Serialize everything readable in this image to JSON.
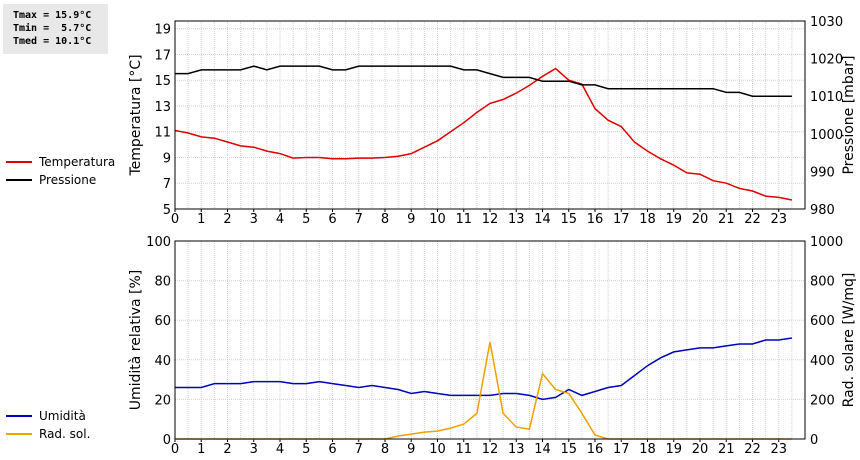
{
  "stats": {
    "tmax": "Tmax = 15.9°C",
    "tmin": "Tmin =  5.7°C",
    "tmed": "Tmed = 10.1°C"
  },
  "colors": {
    "temp": "#dd0000",
    "press": "#000000",
    "hum": "#0000bb",
    "rad": "#f0a000",
    "grid": "#d0d0d0"
  },
  "chart_data": [
    {
      "type": "line",
      "x_ticks": [
        "0",
        "1",
        "2",
        "3",
        "4",
        "5",
        "6",
        "7",
        "8",
        "9",
        "10",
        "11",
        "12",
        "13",
        "14",
        "15",
        "16",
        "17",
        "18",
        "19",
        "20",
        "21",
        "22",
        "23"
      ],
      "xlim": [
        0,
        24
      ],
      "ylabel_left": "Temperatura [°C]",
      "ylabel_right": "Pressione [mbar]",
      "ylim_left": [
        5,
        19.6
      ],
      "ylim_right": [
        980,
        1030
      ],
      "yticks_left": [
        "5",
        "7",
        "9",
        "11",
        "13",
        "15",
        "17",
        "19"
      ],
      "yticks_right": [
        "980",
        "990",
        "1000",
        "1010",
        "1020",
        "1030"
      ],
      "series": [
        {
          "name": "Temperatura",
          "axis": "left",
          "x": [
            0,
            0.5,
            1,
            1.5,
            2,
            2.5,
            3,
            3.5,
            4,
            4.5,
            5,
            5.5,
            6,
            6.5,
            7,
            7.5,
            8,
            8.5,
            9,
            9.5,
            10,
            10.5,
            11,
            11.5,
            12,
            12.5,
            13,
            13.5,
            14,
            14.5,
            15,
            15.5,
            16,
            16.5,
            17,
            17.5,
            18,
            18.5,
            19,
            19.5,
            20,
            20.5,
            21,
            21.5,
            22,
            22.5,
            23,
            23.5
          ],
          "values": [
            11.1,
            10.9,
            10.6,
            10.5,
            10.2,
            9.9,
            9.8,
            9.5,
            9.3,
            8.95,
            9.0,
            9.0,
            8.9,
            8.9,
            8.95,
            8.95,
            9.0,
            9.1,
            9.3,
            9.8,
            10.3,
            11.0,
            11.7,
            12.5,
            13.2,
            13.5,
            14.0,
            14.6,
            15.3,
            15.9,
            15.0,
            14.7,
            12.8,
            11.9,
            11.4,
            10.2,
            9.5,
            8.9,
            8.4,
            7.8,
            7.7,
            7.2,
            7.0,
            6.6,
            6.4,
            6.0,
            5.9,
            5.7
          ]
        },
        {
          "name": "Pressione",
          "axis": "right",
          "x": [
            0,
            0.5,
            1,
            1.5,
            2,
            2.5,
            3,
            3.5,
            4,
            4.5,
            5,
            5.5,
            6,
            6.5,
            7,
            7.5,
            8,
            8.5,
            9,
            9.5,
            10,
            10.5,
            11,
            11.5,
            12,
            12.5,
            13,
            13.5,
            14,
            14.5,
            15,
            15.5,
            16,
            16.5,
            17,
            17.5,
            18,
            18.5,
            19,
            19.5,
            20,
            20.5,
            21,
            21.5,
            22,
            22.5,
            23,
            23.5
          ],
          "values": [
            1016,
            1016,
            1017,
            1017,
            1017,
            1017,
            1018,
            1017,
            1018,
            1018,
            1018,
            1018,
            1017,
            1017,
            1018,
            1018,
            1018,
            1018,
            1018,
            1018,
            1018,
            1018,
            1017,
            1017,
            1016,
            1015,
            1015,
            1015,
            1014,
            1014,
            1014,
            1013,
            1013,
            1012,
            1012,
            1012,
            1012,
            1012,
            1012,
            1012,
            1012,
            1012,
            1011,
            1011,
            1010,
            1010,
            1010,
            1010
          ]
        }
      ]
    },
    {
      "type": "line",
      "x_ticks": [
        "0",
        "1",
        "2",
        "3",
        "4",
        "5",
        "6",
        "7",
        "8",
        "9",
        "10",
        "11",
        "12",
        "13",
        "14",
        "15",
        "16",
        "17",
        "18",
        "19",
        "20",
        "21",
        "22",
        "23"
      ],
      "xlim": [
        0,
        24
      ],
      "ylabel_left": "Umidità relativa [%]",
      "ylabel_right": "Rad. solare [W/mq]",
      "ylim_left": [
        0,
        100
      ],
      "ylim_right": [
        0,
        1000
      ],
      "yticks_left": [
        "0",
        "20",
        "40",
        "60",
        "80",
        "100"
      ],
      "yticks_right": [
        "0",
        "200",
        "400",
        "600",
        "800",
        "1000"
      ],
      "series": [
        {
          "name": "Umidità",
          "axis": "left",
          "x": [
            0,
            0.5,
            1,
            1.5,
            2,
            2.5,
            3,
            3.5,
            4,
            4.5,
            5,
            5.5,
            6,
            6.5,
            7,
            7.5,
            8,
            8.5,
            9,
            9.5,
            10,
            10.5,
            11,
            11.5,
            12,
            12.5,
            13,
            13.5,
            14,
            14.5,
            15,
            15.5,
            16,
            16.5,
            17,
            17.5,
            18,
            18.5,
            19,
            19.5,
            20,
            20.5,
            21,
            21.5,
            22,
            22.5,
            23,
            23.5
          ],
          "values": [
            26,
            26,
            26,
            28,
            28,
            28,
            29,
            29,
            29,
            28,
            28,
            29,
            28,
            27,
            26,
            27,
            26,
            25,
            23,
            24,
            23,
            22,
            22,
            22,
            22,
            23,
            23,
            22,
            20,
            21,
            25,
            22,
            24,
            26,
            27,
            32,
            37,
            41,
            44,
            45,
            46,
            46,
            47,
            48,
            48,
            50,
            50,
            51
          ]
        },
        {
          "name": "Rad. sol.",
          "axis": "right",
          "x": [
            0,
            0.5,
            1,
            1.5,
            2,
            2.5,
            3,
            3.5,
            4,
            4.5,
            5,
            5.5,
            6,
            6.5,
            7,
            7.5,
            8,
            8.5,
            9,
            9.5,
            10,
            10.5,
            11,
            11.5,
            12,
            12.5,
            13,
            13.5,
            14,
            14.5,
            15,
            15.5,
            16,
            16.5,
            17,
            17.5,
            18,
            18.5,
            19,
            19.5,
            20,
            20.5,
            21,
            21.5,
            22,
            22.5,
            23,
            23.5
          ],
          "values": [
            0,
            0,
            0,
            0,
            0,
            0,
            0,
            0,
            0,
            0,
            0,
            0,
            0,
            0,
            0,
            0,
            0,
            15,
            25,
            35,
            40,
            55,
            75,
            130,
            490,
            130,
            60,
            50,
            330,
            250,
            230,
            130,
            20,
            0,
            0,
            0,
            0,
            0,
            0,
            0,
            0,
            0,
            0,
            0,
            0,
            0,
            0,
            0
          ]
        }
      ]
    }
  ]
}
